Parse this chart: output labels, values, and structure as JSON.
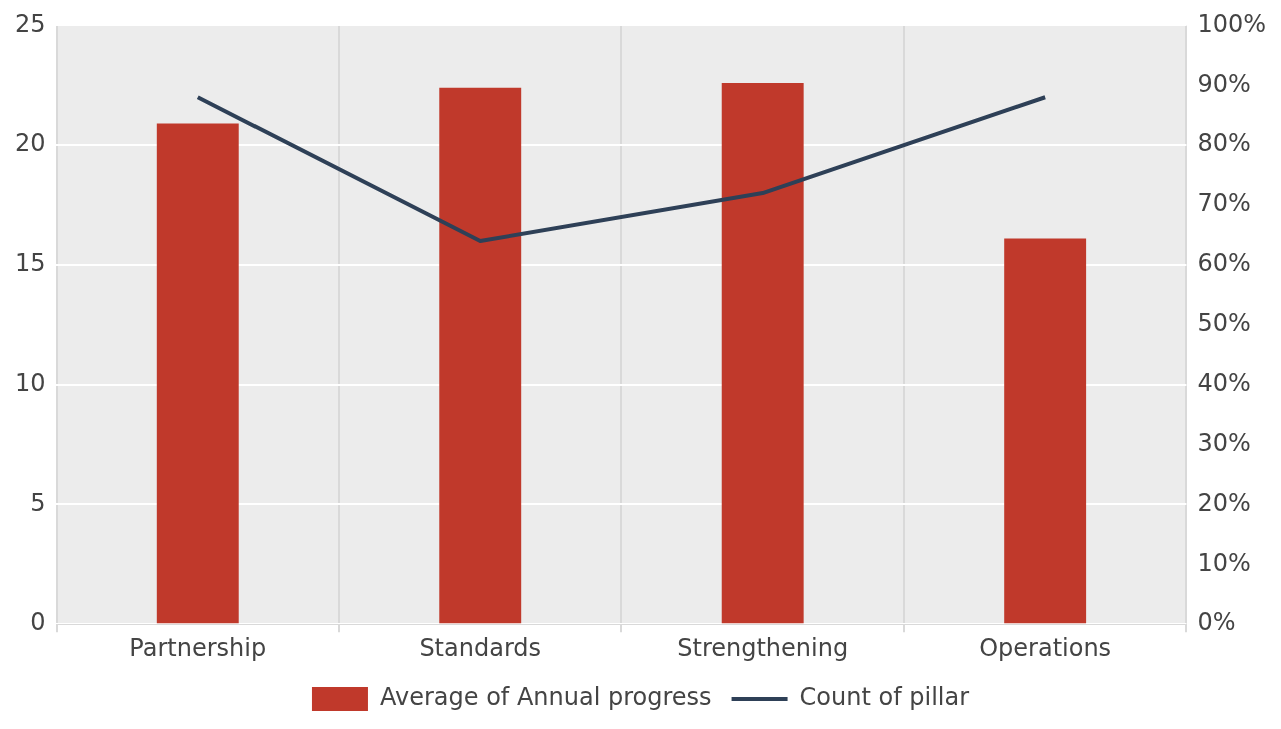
{
  "chart_data": {
    "type": "bar",
    "categories": [
      "Partnership",
      "Standards",
      "Strengthening",
      "Operations"
    ],
    "series": [
      {
        "name": "Average of Annual progress",
        "color": "#c0392b",
        "values": [
          20.9,
          22.4,
          22.6,
          16.1
        ]
      },
      {
        "name": "Count of pillar",
        "type": "line",
        "axis": "y2",
        "color": "#2e4057",
        "values": [
          88,
          64,
          72,
          88
        ]
      }
    ],
    "ylim": [
      0,
      25
    ],
    "yticks": [
      0,
      5,
      10,
      15,
      20,
      25
    ],
    "y2lim": [
      0,
      100
    ],
    "y2ticks": [
      {
        "value": 0,
        "label": "0%"
      },
      {
        "value": 10,
        "label": "10%"
      },
      {
        "value": 20,
        "label": "20%"
      },
      {
        "value": 30,
        "label": "30%"
      },
      {
        "value": 40,
        "label": "40%"
      },
      {
        "value": 50,
        "label": "50%"
      },
      {
        "value": 60,
        "label": "60%"
      },
      {
        "value": 70,
        "label": "70%"
      },
      {
        "value": 80,
        "label": "80%"
      },
      {
        "value": 90,
        "label": "90%"
      },
      {
        "value": 100,
        "label": "100%"
      }
    ],
    "grid": true,
    "legend": "bottom",
    "marker": "none",
    "line_style": "solid"
  }
}
